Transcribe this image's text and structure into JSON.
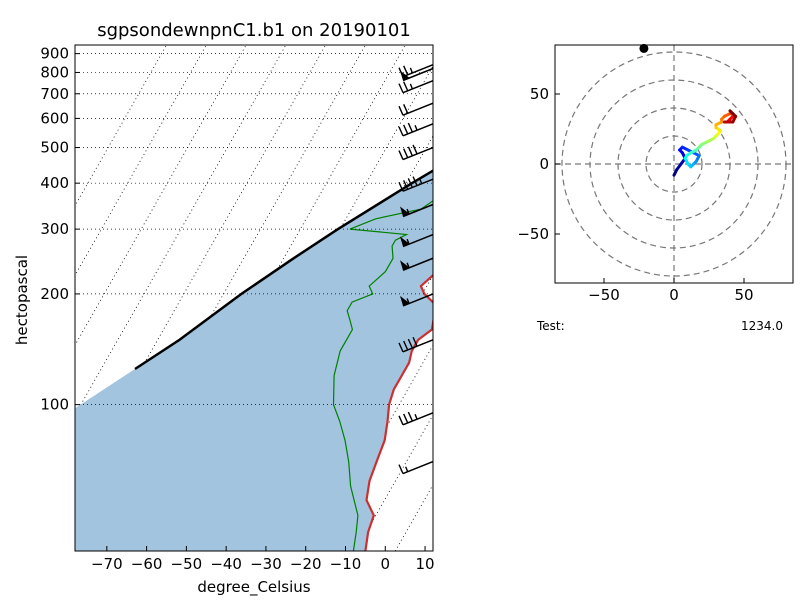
{
  "chart_data": [
    {
      "type": "line",
      "subtype": "skew-t",
      "title": "sgpsondewnpnC1.b1 on 20190101",
      "xlabel": "degree_Celsius",
      "ylabel": "hectopascal",
      "xlim": [
        -78,
        12
      ],
      "ylim": [
        950,
        40
      ],
      "y_scale": "log",
      "x_ticks": [
        -70,
        -60,
        -50,
        -40,
        -30,
        -20,
        -10,
        0,
        10
      ],
      "y_ticks": [
        100,
        200,
        300,
        400,
        500,
        600,
        700,
        800,
        900
      ],
      "shaded_region": "between parcel path and temperature",
      "shade_color": "#a3c4de",
      "series": [
        {
          "color": "#cc2f2f",
          "p": [
            930,
            925,
            915,
            905,
            880,
            850,
            800,
            760,
            700,
            650,
            600,
            560,
            520,
            480,
            440,
            400,
            360,
            320,
            290,
            260,
            230,
            210,
            200,
            185,
            170,
            160,
            150,
            140,
            130,
            120,
            110,
            100,
            90,
            80,
            70,
            62,
            55,
            50,
            45,
            40
          ],
          "t": [
            5,
            8,
            9,
            7,
            5,
            4,
            1,
            -1,
            -3,
            -5,
            -7,
            -9,
            -10,
            -14,
            -15,
            -17,
            -19,
            -21,
            -23,
            -25,
            -27,
            -29,
            -27,
            -22,
            -21,
            -20,
            -22,
            -22,
            -21,
            -21,
            -21,
            -20,
            -18,
            -16,
            -15,
            -14,
            -12,
            -8,
            -7,
            -5
          ]
        },
        {
          "color": "#008000",
          "p": [
            925,
            900,
            880,
            860,
            840,
            820,
            800,
            780,
            760,
            740,
            720,
            700,
            680,
            650,
            620,
            600,
            580,
            560,
            540,
            520,
            500,
            480,
            460,
            440,
            420,
            400,
            380,
            360,
            340,
            320,
            300,
            290,
            280,
            270,
            250,
            230,
            210,
            200,
            190,
            180,
            170,
            160,
            140,
            120,
            100,
            90,
            80,
            70,
            60,
            50,
            45,
            40
          ],
          "td": [
            -5,
            -9,
            -14,
            -10,
            -22,
            -11,
            -16,
            -13,
            -18,
            -10,
            -16,
            -9,
            -13,
            -14,
            -12,
            -16,
            -14,
            -20,
            -18,
            -22,
            -23,
            -24,
            -28,
            -28,
            -30,
            -33,
            -35,
            -38,
            -40,
            -50,
            -55,
            -40,
            -42,
            -42,
            -40,
            -40,
            -42,
            -40,
            -44,
            -44,
            -42,
            -40,
            -40,
            -38,
            -34,
            -30,
            -26,
            -22,
            -18,
            -12,
            -10,
            -8
          ]
        },
        {
          "color": "#000000",
          "name": "parcel",
          "p": [
            930,
            900,
            800,
            700,
            600,
            500,
            400,
            300,
            250,
            200,
            150,
            125
          ],
          "t": [
            -7,
            -9,
            -15,
            -21,
            -28,
            -36,
            -46,
            -58,
            -65,
            -73,
            -82,
            -89
          ]
        }
      ],
      "lcl_marker": {
        "p": 930,
        "t": -7
      },
      "wind_barbs": [
        {
          "p": 840,
          "spd_kt": 25
        },
        {
          "p": 820,
          "spd_kt": 50
        },
        {
          "p": 760,
          "spd_kt": 25
        },
        {
          "p": 660,
          "spd_kt": 20
        },
        {
          "p": 580,
          "spd_kt": 35
        },
        {
          "p": 500,
          "spd_kt": 40
        },
        {
          "p": 410,
          "spd_kt": 45
        },
        {
          "p": 350,
          "spd_kt": 55
        },
        {
          "p": 290,
          "spd_kt": 55
        },
        {
          "p": 250,
          "spd_kt": 55
        },
        {
          "p": 200,
          "spd_kt": 55
        },
        {
          "p": 150,
          "spd_kt": 40
        },
        {
          "p": 95,
          "spd_kt": 35
        },
        {
          "p": 70,
          "spd_kt": 15
        }
      ]
    },
    {
      "type": "line",
      "subtype": "hodograph",
      "xlim": [
        -85,
        85
      ],
      "ylim": [
        -85,
        85
      ],
      "ticks": [
        -50,
        0,
        50
      ],
      "rings": [
        20,
        40,
        60,
        80
      ],
      "u": [
        0,
        2,
        5,
        8,
        6,
        4,
        6,
        10,
        14,
        18,
        16,
        14,
        12,
        10,
        8,
        9,
        12,
        16,
        18,
        20,
        24,
        28,
        30,
        32,
        33,
        30,
        30,
        34,
        34,
        36,
        40,
        42,
        42,
        40,
        38,
        36,
        42,
        44,
        40
      ],
      "v": [
        -8,
        -4,
        0,
        4,
        8,
        10,
        12,
        10,
        8,
        6,
        2,
        0,
        -2,
        0,
        4,
        6,
        8,
        10,
        12,
        14,
        16,
        18,
        20,
        22,
        24,
        26,
        28,
        30,
        32,
        34,
        36,
        36,
        34,
        32,
        30,
        30,
        30,
        34,
        38
      ]
    }
  ],
  "test_label": "Test:",
  "test_value": "1234.0"
}
